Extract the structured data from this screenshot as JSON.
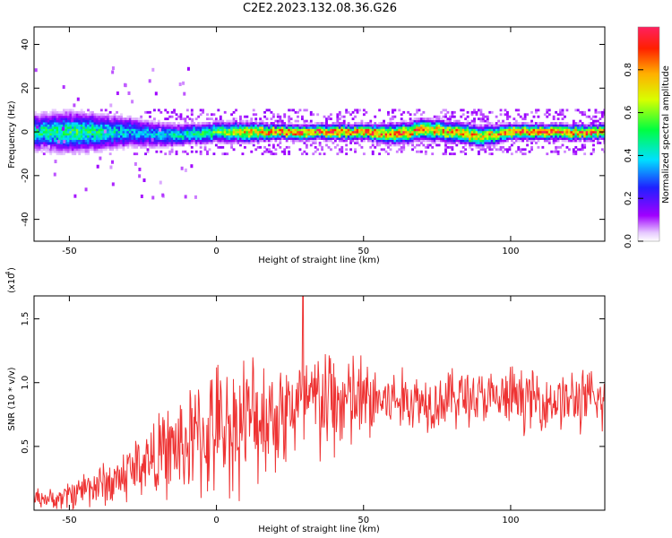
{
  "figure": {
    "title": "C2E2.2023.132.08.36.G26"
  },
  "chart_data": [
    {
      "type": "heatmap",
      "title": "C2E2.2023.132.08.36.G26",
      "xlabel": "Height of straight line (km)",
      "ylabel": "Frequency (Hz)",
      "xlim": [
        -62,
        132
      ],
      "ylim": [
        -50,
        48
      ],
      "x_ticks": [
        -50,
        0,
        50,
        100
      ],
      "x_tick_labels": [
        "-50",
        "0",
        "50",
        "100"
      ],
      "y_ticks": [
        -40,
        -20,
        0,
        20,
        40
      ],
      "y_tick_labels": [
        "-40",
        "-20",
        "0",
        "20",
        "40"
      ],
      "colorbar": {
        "label": "Normalized spectral amplitude",
        "range": [
          0,
          1
        ],
        "ticks": [
          0.0,
          0.2,
          0.4,
          0.6,
          0.8
        ],
        "tick_labels": [
          "0.0",
          "0.2",
          "0.4",
          "0.6",
          "0.8"
        ],
        "colormap": "rainbow (white-violet-blue-cyan-green-yellow-red)"
      },
      "description_series": {
        "x": [
          -60,
          -50,
          -40,
          -30,
          -20,
          -10,
          0,
          10,
          20,
          30,
          40,
          50,
          60,
          70,
          80,
          90,
          100,
          110,
          120,
          130
        ],
        "center_frequency": [
          0,
          0,
          0,
          0,
          -1,
          -1,
          0,
          0,
          0,
          0,
          0,
          0,
          -1,
          1,
          0,
          -2,
          0,
          0,
          0,
          0
        ],
        "band_halfwidth": [
          7,
          8,
          7,
          6,
          5,
          4,
          4,
          4,
          3,
          3,
          3,
          3,
          4,
          4,
          4,
          4,
          3,
          3,
          3,
          3
        ],
        "peak_amplitude": [
          0.5,
          0.55,
          0.5,
          0.4,
          0.4,
          0.5,
          0.6,
          0.8,
          0.95,
          0.95,
          0.95,
          0.95,
          0.9,
          0.9,
          0.85,
          0.85,
          0.95,
          0.95,
          0.95,
          0.95
        ]
      }
    },
    {
      "type": "line",
      "xlabel": "Height of straight line (km)",
      "ylabel": "SNR (10 * v/v)",
      "y_multiplier_label": "(x10",
      "y_multiplier_exp": "4",
      "xlim": [
        -62,
        132
      ],
      "ylim": [
        0,
        1.68
      ],
      "x_ticks": [
        -50,
        0,
        50,
        100
      ],
      "x_tick_labels": [
        "-50",
        "0",
        "50",
        "100"
      ],
      "y_ticks": [
        0.5,
        1.0,
        1.5
      ],
      "y_tick_labels": [
        "0.5",
        "1.0",
        "1.5"
      ],
      "series": [
        {
          "color": "#ee3333",
          "x": [
            -60,
            -55,
            -50,
            -45,
            -40,
            -35,
            -30,
            -25,
            -20,
            -15,
            -10,
            -5,
            0,
            5,
            10,
            15,
            20,
            25,
            30,
            35,
            40,
            45,
            50,
            55,
            60,
            65,
            70,
            75,
            80,
            85,
            90,
            95,
            100,
            105,
            110,
            115,
            120,
            125,
            130
          ],
          "mean": [
            0.1,
            0.08,
            0.12,
            0.18,
            0.2,
            0.22,
            0.3,
            0.38,
            0.42,
            0.48,
            0.52,
            0.58,
            0.62,
            0.66,
            0.7,
            0.74,
            0.76,
            0.8,
            0.82,
            0.84,
            0.84,
            0.85,
            0.85,
            0.86,
            0.86,
            0.86,
            0.86,
            0.86,
            0.88,
            0.9,
            0.88,
            0.86,
            0.88,
            0.88,
            0.86,
            0.86,
            0.86,
            0.86,
            0.85
          ],
          "spread": [
            0.06,
            0.06,
            0.1,
            0.12,
            0.14,
            0.16,
            0.2,
            0.22,
            0.25,
            0.3,
            0.35,
            0.4,
            0.42,
            0.42,
            0.42,
            0.4,
            0.38,
            0.36,
            0.38,
            0.4,
            0.38,
            0.34,
            0.3,
            0.25,
            0.2,
            0.2,
            0.2,
            0.18,
            0.2,
            0.2,
            0.18,
            0.18,
            0.2,
            0.2,
            0.18,
            0.18,
            0.2,
            0.2,
            0.2
          ],
          "peak": {
            "x": 29.5,
            "y": 1.68
          }
        }
      ]
    }
  ]
}
